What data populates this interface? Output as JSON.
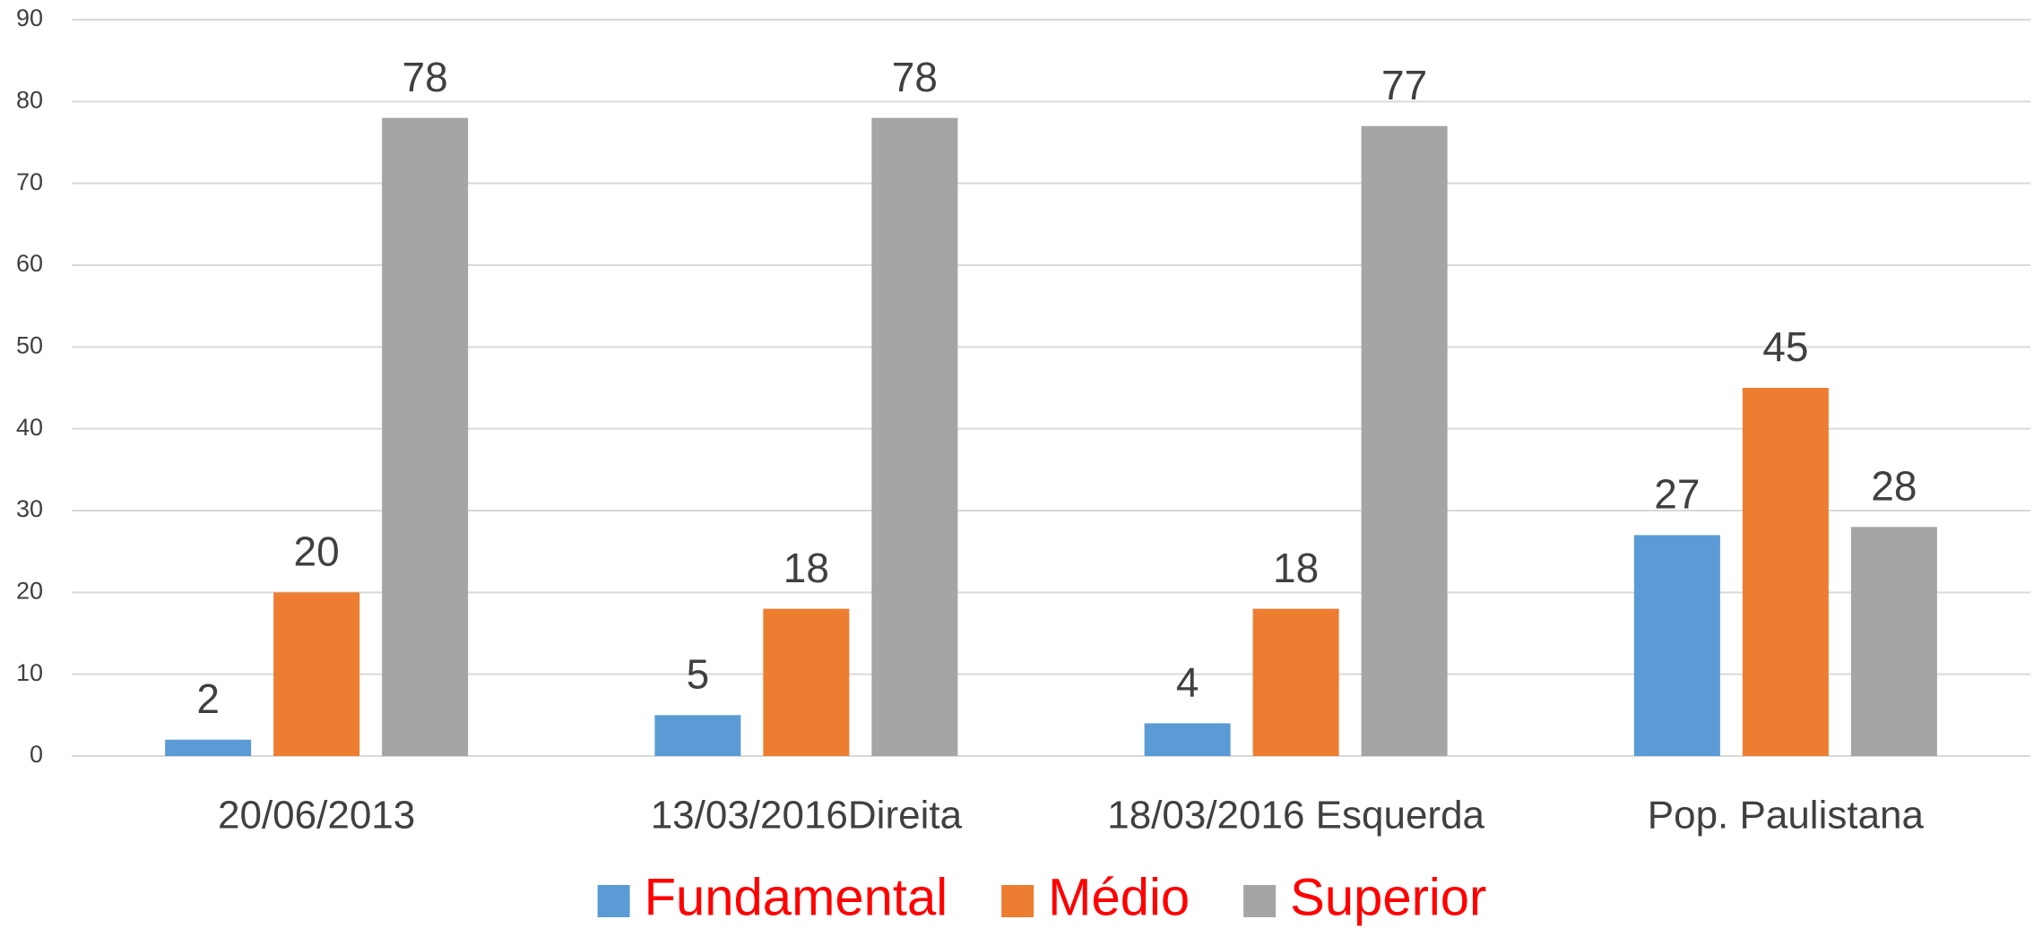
{
  "chart_data": {
    "type": "bar",
    "categories": [
      "20/06/2013",
      "13/03/2016Direita",
      "18/03/2016 Esquerda",
      "Pop. Paulistana"
    ],
    "series": [
      {
        "name": "Fundamental",
        "color": "#5b9bd5",
        "values": [
          2,
          5,
          4,
          27
        ]
      },
      {
        "name": "Médio",
        "color": "#ed7d31",
        "values": [
          20,
          18,
          18,
          45
        ]
      },
      {
        "name": "Superior",
        "color": "#a5a5a5",
        "values": [
          78,
          78,
          77,
          28
        ]
      }
    ],
    "ylim": [
      0,
      90
    ],
    "yticks": [
      0,
      10,
      20,
      30,
      40,
      50,
      60,
      70,
      80,
      90
    ],
    "grid": true,
    "legend": "bottom",
    "legend_text_color": "#ff0000"
  }
}
